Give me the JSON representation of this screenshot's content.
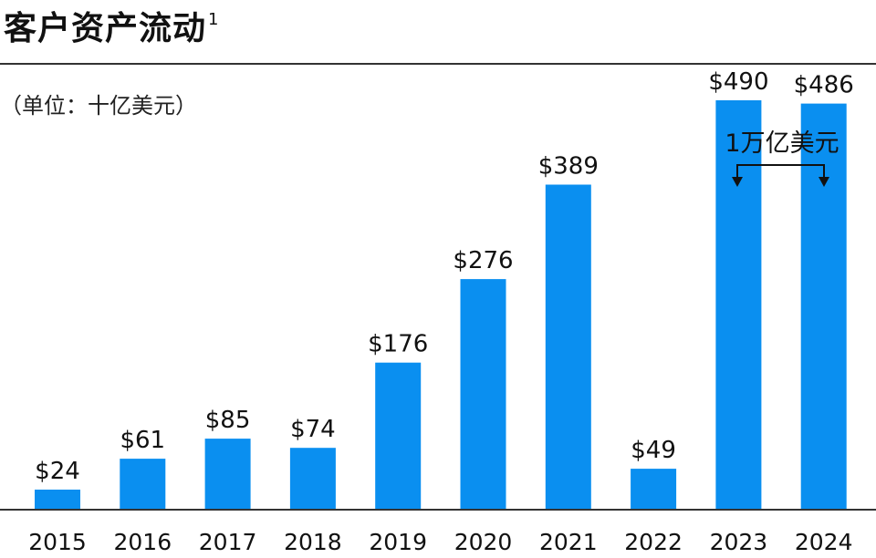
{
  "header": {
    "title": "客户资产流动",
    "footnote_mark": "1",
    "unit_label": "（单位：十亿美元）"
  },
  "annotation": {
    "text": "1万亿美元"
  },
  "colors": {
    "bar": "#0a8ff0",
    "axis": "#333333",
    "text": "#111111"
  },
  "chart_data": {
    "type": "bar",
    "categories": [
      "2015",
      "2016",
      "2017",
      "2018",
      "2019",
      "2020",
      "2021",
      "2022",
      "2023",
      "2024"
    ],
    "values": [
      24,
      61,
      85,
      74,
      176,
      276,
      389,
      49,
      490,
      486
    ],
    "value_labels": [
      "$24",
      "$61",
      "$85",
      "$74",
      "$176",
      "$276",
      "$389",
      "$49",
      "$490",
      "$486"
    ],
    "title": "客户资产流动",
    "xlabel": "",
    "ylabel": "",
    "ylim": [
      0,
      610
    ],
    "grid": false
  }
}
